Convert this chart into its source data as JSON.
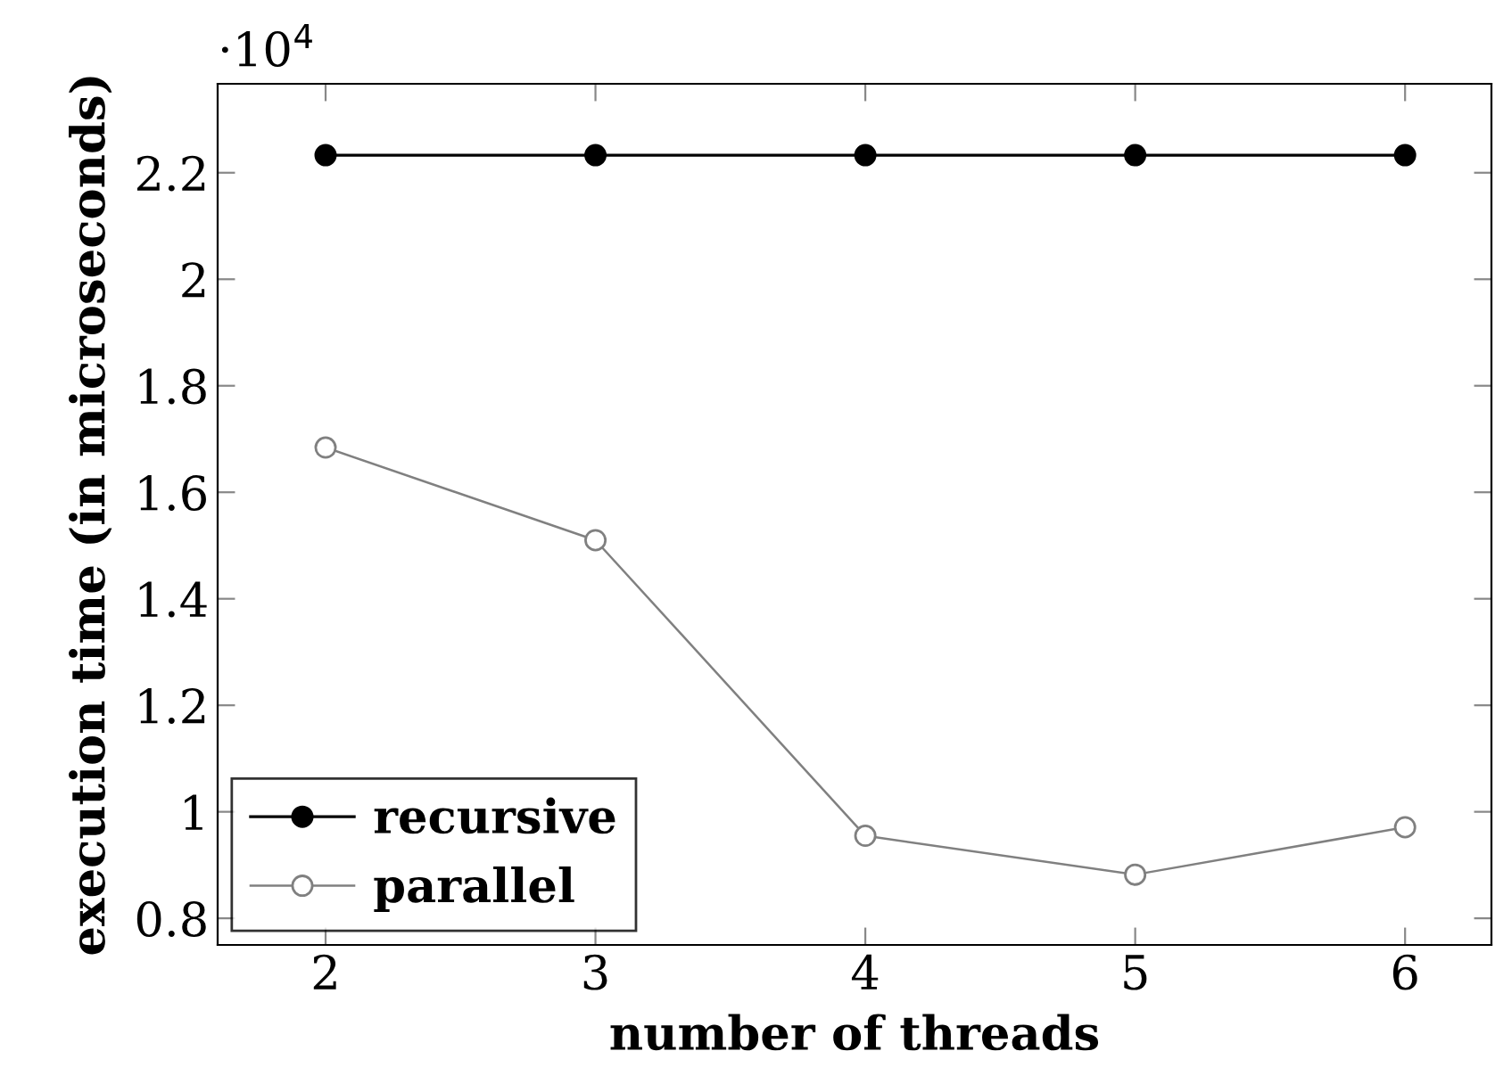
{
  "chart_data": {
    "type": "line",
    "xlabel": "number of threads",
    "ylabel": "execution time (in microseconds)",
    "annotations": [
      "·10$^{4}$"
    ],
    "x": [
      2,
      3,
      4,
      5,
      6
    ],
    "series": [
      {
        "name": "recursive",
        "color": "#000000",
        "values": [
          2.233,
          2.233,
          2.233,
          2.233,
          2.233
        ],
        "marker": "circle"
      },
      {
        "name": "parallel",
        "color": "#808080",
        "values": [
          1.684,
          1.51,
          0.955,
          0.882,
          0.971
        ],
        "marker": "circle"
      }
    ],
    "xlim": [
      1.6,
      6.32
    ],
    "xticks": [
      2,
      3,
      4,
      5,
      6
    ],
    "ylim": [
      0.75,
      2.367
    ],
    "yticks": [
      {
        "value": 0.8,
        "label": "0.8"
      },
      1,
      1.2,
      1.4,
      1.6,
      1.8,
      2,
      2.2
    ],
    "legend": "bottom left",
    "grid": false
  }
}
